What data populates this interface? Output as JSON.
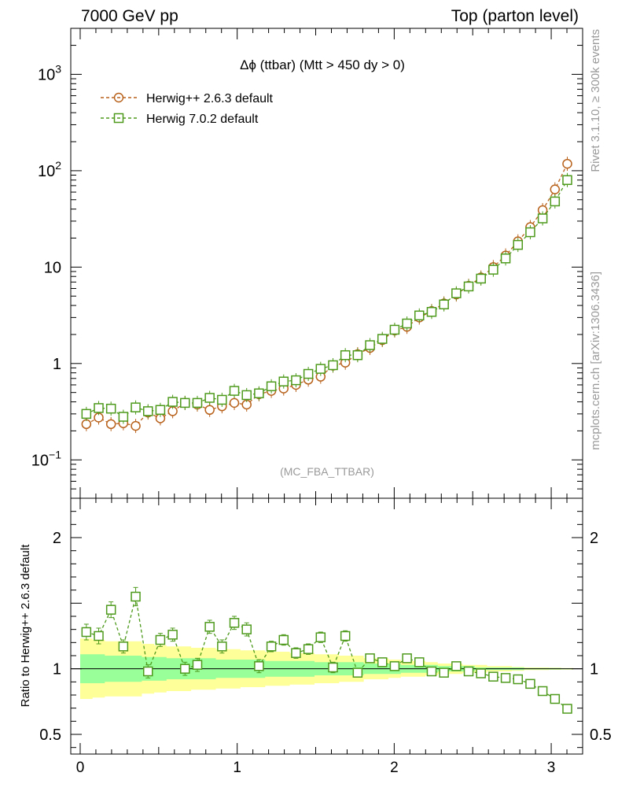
{
  "header": {
    "left": "7000 GeV pp",
    "right": "Top (parton level)"
  },
  "side": {
    "rivet": "Rivet 3.1.10, ≥ 300k events",
    "mcplots": "mcplots.cern.ch [arXiv:1306.3436]"
  },
  "chart_data": {
    "type": "line",
    "title": "Δϕ (ttbar) (Mtt > 450 dy > 0)",
    "watermark": "(MC_FBA_TTBAR)",
    "xlim": [
      -0.06,
      3.2
    ],
    "x_ticks": [
      0,
      1,
      2,
      3
    ],
    "x_tick_labels": [
      "0",
      "1",
      "2",
      "3"
    ],
    "main": {
      "yscale": "log",
      "ylim": [
        0.04,
        3000
      ],
      "y_ticks": [
        0.1,
        1,
        10,
        100,
        1000
      ],
      "y_tick_labels": [
        {
          "base": "10",
          "exp": "−1"
        },
        {
          "base": "1",
          "exp": ""
        },
        {
          "base": "10",
          "exp": ""
        },
        {
          "base": "10",
          "exp": "2"
        },
        {
          "base": "10",
          "exp": "3"
        }
      ],
      "legend": "top-left"
    },
    "ratio": {
      "ylabel": "Ratio to Herwig++ 2.6.3 default",
      "yscale": "linear",
      "ylim": [
        0.35,
        2.3
      ],
      "y_ticks": [
        0.5,
        1,
        2
      ],
      "y_tick_labels": [
        "0.5",
        "1",
        "2"
      ],
      "band_inner_halfwidth": [
        0.11,
        0.11,
        0.1,
        0.1,
        0.1,
        0.09,
        0.09,
        0.08,
        0.08,
        0.08,
        0.08,
        0.07,
        0.07,
        0.07,
        0.07,
        0.06,
        0.06,
        0.06,
        0.06,
        0.05,
        0.05,
        0.05,
        0.05,
        0.04,
        0.04,
        0.04,
        0.03,
        0.03,
        0.03,
        0.02,
        0.02,
        0.02,
        0.01,
        0.01,
        0.01,
        0.01,
        0.005,
        0.005,
        0.005,
        0.004
      ],
      "band_outer_halfwidth": [
        0.23,
        0.22,
        0.21,
        0.21,
        0.21,
        0.19,
        0.18,
        0.17,
        0.17,
        0.16,
        0.16,
        0.15,
        0.15,
        0.14,
        0.14,
        0.13,
        0.13,
        0.12,
        0.12,
        0.11,
        0.11,
        0.1,
        0.1,
        0.08,
        0.08,
        0.07,
        0.06,
        0.06,
        0.05,
        0.04,
        0.04,
        0.03,
        0.03,
        0.02,
        0.02,
        0.015,
        0.01,
        0.01,
        0.008,
        0.006
      ]
    },
    "x": [
      0.0393,
      0.1178,
      0.1963,
      0.2749,
      0.3534,
      0.432,
      0.5105,
      0.589,
      0.6676,
      0.7461,
      0.8247,
      0.9032,
      0.9817,
      1.0603,
      1.1388,
      1.2174,
      1.2959,
      1.3744,
      1.453,
      1.5315,
      1.6101,
      1.6886,
      1.7671,
      1.8457,
      1.9242,
      2.0028,
      2.0813,
      2.1598,
      2.2384,
      2.3169,
      2.3955,
      2.474,
      2.5525,
      2.6311,
      2.7096,
      2.7882,
      2.8667,
      2.9452,
      3.0238,
      3.1023
    ],
    "series": [
      {
        "name": "Herwig++ 2.6.3 default",
        "color": "#b8621c",
        "marker": "circle",
        "values": [
          0.235,
          0.275,
          0.235,
          0.24,
          0.225,
          0.31,
          0.27,
          0.32,
          0.39,
          0.375,
          0.33,
          0.36,
          0.39,
          0.375,
          0.48,
          0.52,
          0.55,
          0.6,
          0.68,
          0.73,
          0.95,
          1.02,
          1.25,
          1.45,
          1.75,
          2.2,
          2.4,
          3.0,
          3.5,
          4.2,
          5.2,
          6.4,
          7.8,
          10.0,
          13.2,
          18.5,
          26.0,
          39.0,
          64.0,
          118.0
        ],
        "ratio": [
          1,
          1,
          1,
          1,
          1,
          1,
          1,
          1,
          1,
          1,
          1,
          1,
          1,
          1,
          1,
          1,
          1,
          1,
          1,
          1,
          1,
          1,
          1,
          1,
          1,
          1,
          1,
          1,
          1,
          1,
          1,
          1,
          1,
          1,
          1,
          1,
          1,
          1,
          1,
          1
        ]
      },
      {
        "name": "Herwig 7.0.2 default",
        "color": "#4d9a1c",
        "marker": "square",
        "values": [
          0.3,
          0.345,
          0.34,
          0.28,
          0.35,
          0.32,
          0.33,
          0.4,
          0.39,
          0.39,
          0.44,
          0.42,
          0.52,
          0.47,
          0.49,
          0.58,
          0.65,
          0.67,
          0.78,
          0.88,
          0.96,
          1.22,
          1.22,
          1.55,
          1.8,
          2.24,
          2.6,
          3.15,
          3.43,
          4.1,
          5.35,
          6.3,
          7.6,
          9.4,
          12.3,
          17.0,
          23.0,
          32.0,
          48.0,
          80.0
        ],
        "ratio": [
          1.28,
          1.25,
          1.45,
          1.17,
          1.55,
          0.98,
          1.22,
          1.26,
          1.0,
          1.03,
          1.32,
          1.17,
          1.35,
          1.3,
          1.02,
          1.17,
          1.22,
          1.12,
          1.15,
          1.24,
          1.01,
          1.25,
          0.97,
          1.08,
          1.05,
          1.02,
          1.08,
          1.05,
          0.98,
          0.97,
          1.02,
          0.98,
          0.965,
          0.94,
          0.93,
          0.92,
          0.885,
          0.83,
          0.77,
          0.695
        ],
        "ratio_err": [
          0.06,
          0.06,
          0.06,
          0.05,
          0.07,
          0.05,
          0.05,
          0.05,
          0.05,
          0.05,
          0.05,
          0.05,
          0.05,
          0.05,
          0.05,
          0.04,
          0.04,
          0.04,
          0.04,
          0.04,
          0.04,
          0.04,
          0.03,
          0.03,
          0.03,
          0.02,
          0.02,
          0.02,
          0.02,
          0.02,
          0.015,
          0.01,
          0.01,
          0.01,
          0.01,
          0.01,
          0.01,
          0.01,
          0.01,
          0.01
        ]
      }
    ]
  }
}
